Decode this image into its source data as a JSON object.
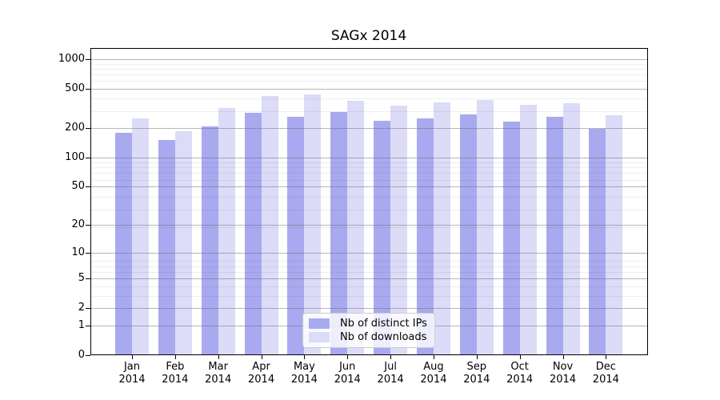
{
  "chart_data": {
    "type": "bar",
    "title": "SAGx 2014",
    "categories": [
      "Jan 2014",
      "Feb 2014",
      "Mar 2014",
      "Apr 2014",
      "May 2014",
      "Jun 2014",
      "Jul 2014",
      "Aug 2014",
      "Sep 2014",
      "Oct 2014",
      "Nov 2014",
      "Dec 2014"
    ],
    "series": [
      {
        "name": "Nb of distinct IPs",
        "color": "#a9a9f0",
        "values": [
          179,
          151,
          208,
          285,
          258,
          290,
          238,
          249,
          277,
          231,
          262,
          196
        ]
      },
      {
        "name": "Nb of downloads",
        "color": "#dcdcf8",
        "values": [
          251,
          187,
          322,
          423,
          440,
          380,
          338,
          367,
          388,
          343,
          356,
          270
        ]
      }
    ],
    "yscale": "log10(1+y)",
    "ylim": [
      0,
      1300
    ],
    "y_ticks": [
      0,
      1,
      2,
      5,
      10,
      20,
      50,
      100,
      200,
      500,
      1000
    ],
    "grid": "major and minor horizontal gridlines drawn over bars",
    "legend_position": "lower center inside plot",
    "xlabel": "",
    "ylabel": ""
  },
  "colors": {
    "bar_ips": "#a9a9f0",
    "bar_downloads": "#dcdcf8",
    "grid_major": "rgba(110,110,110,0.50)",
    "grid_minor": "rgba(40,40,40,0.08)",
    "axis_frame": "#000000",
    "legend_border": "#cccccc",
    "background": "#ffffff"
  }
}
